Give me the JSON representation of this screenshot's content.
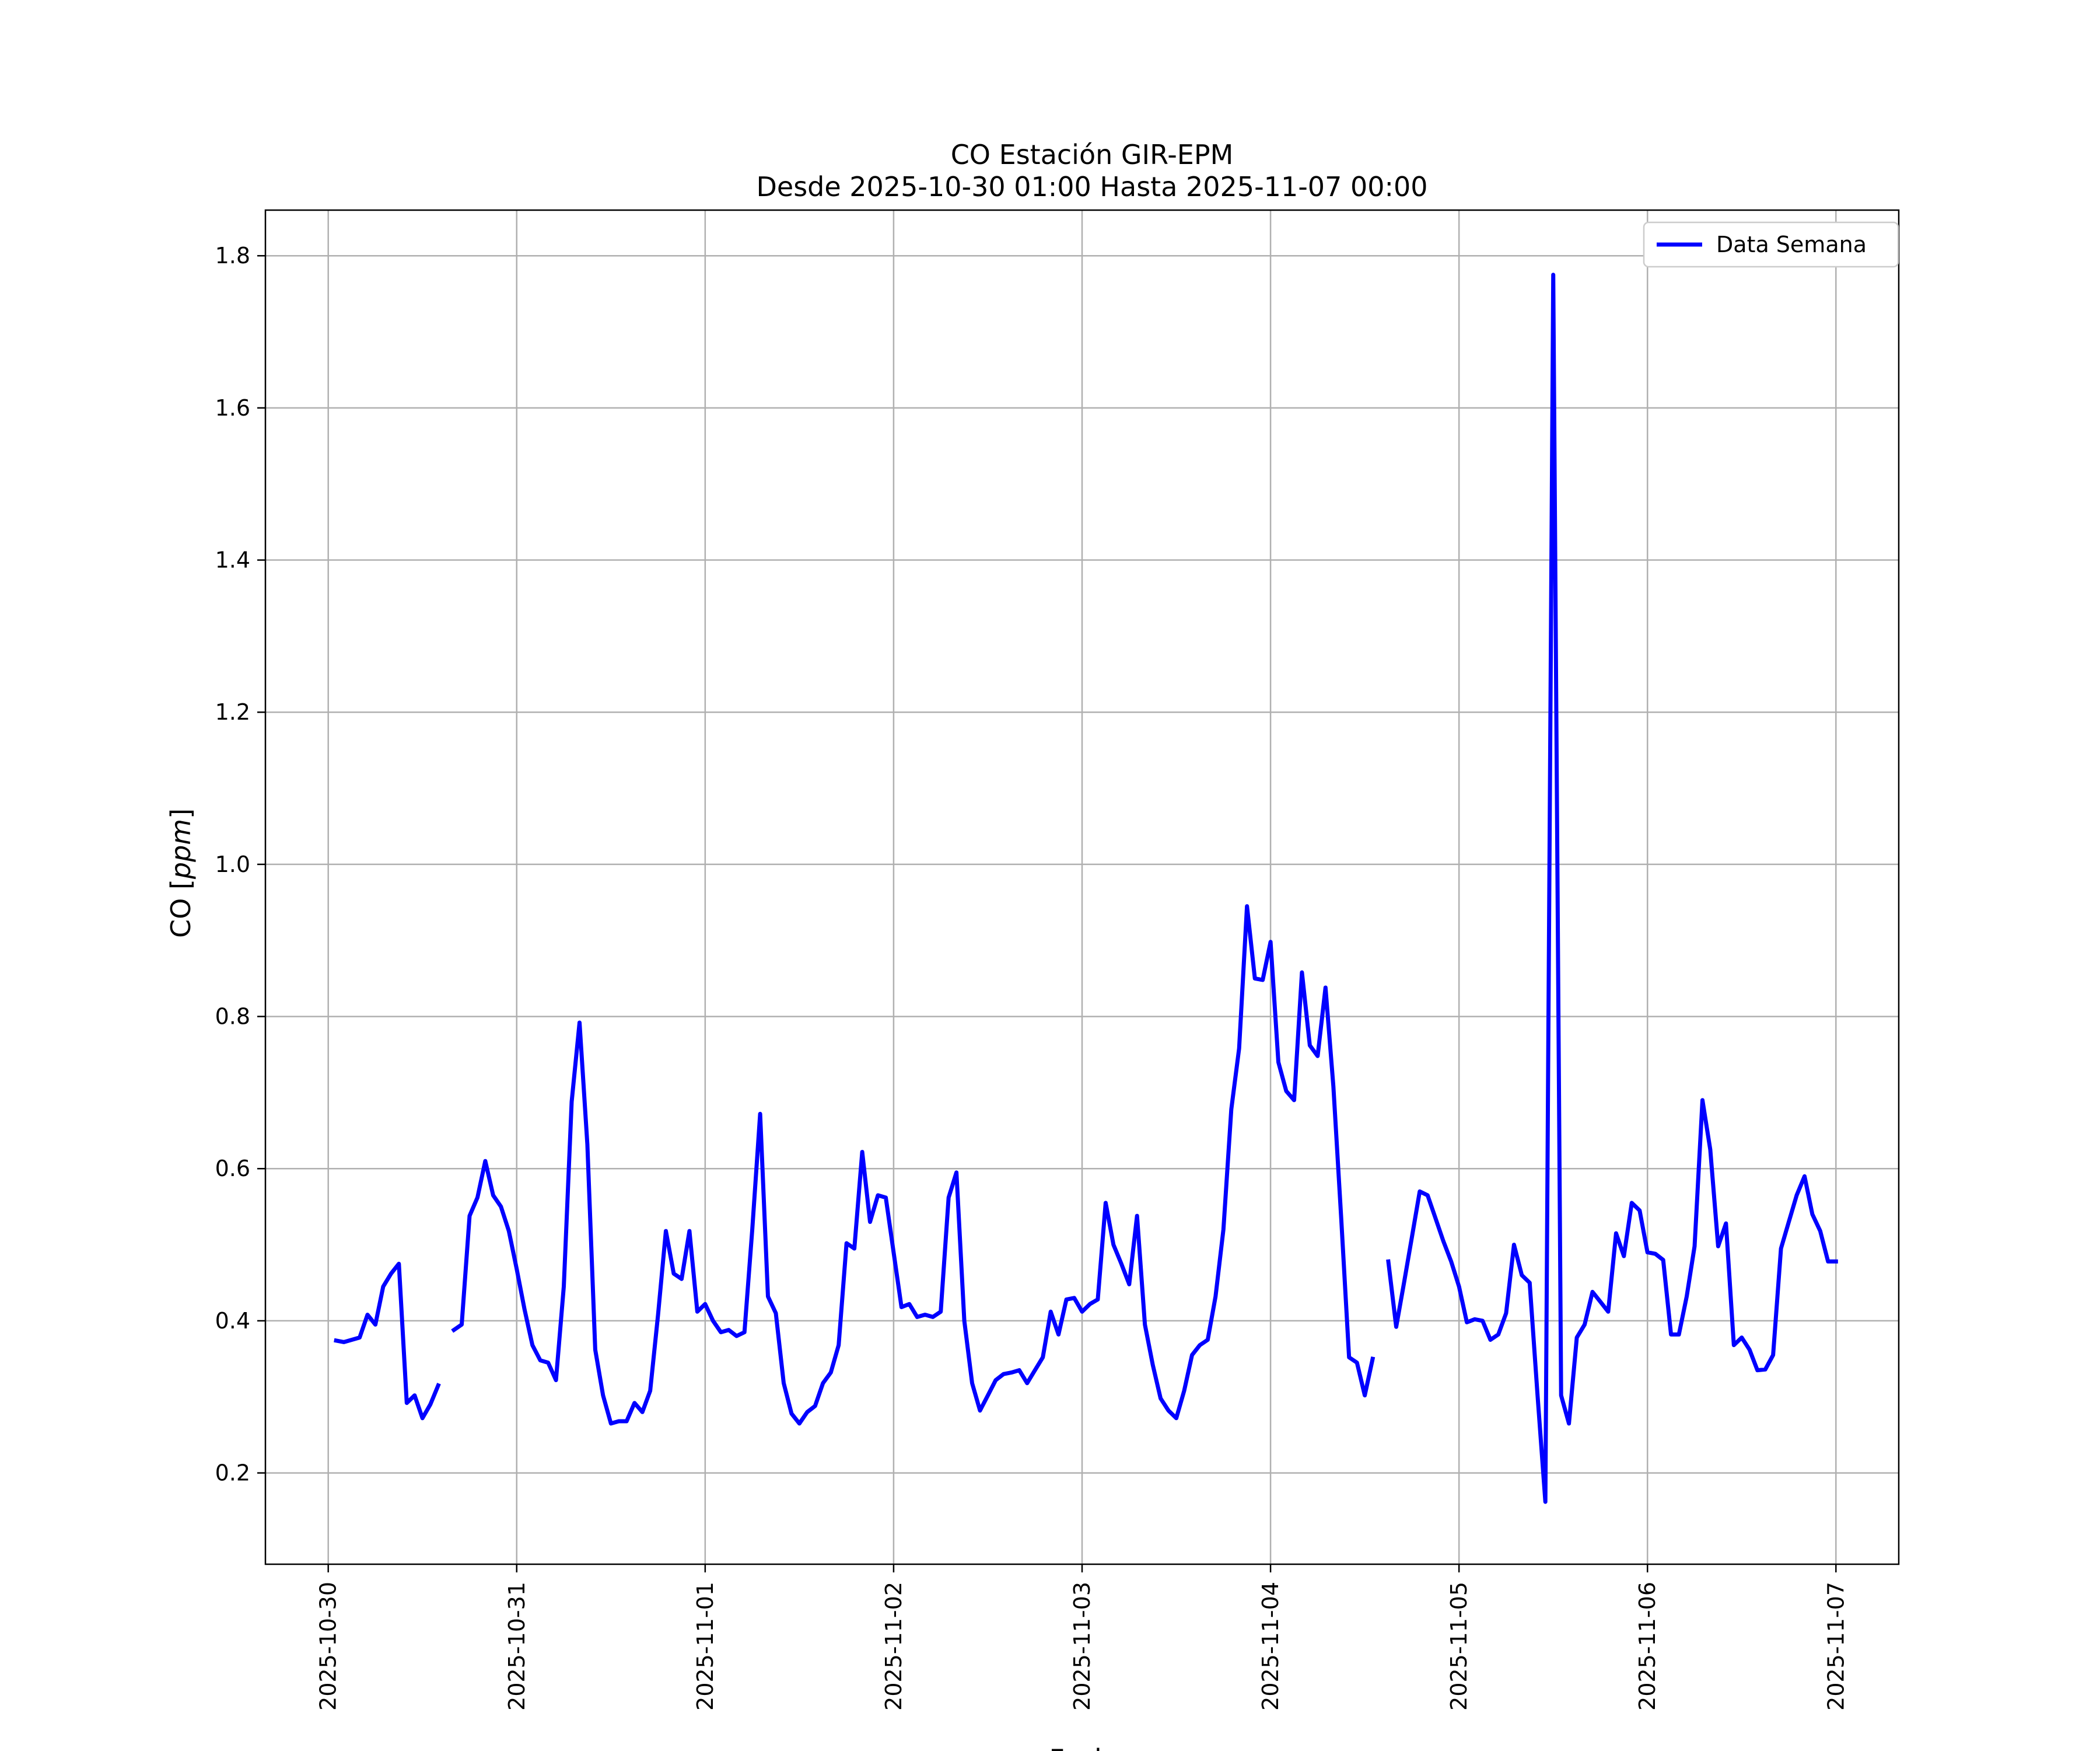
{
  "chart_data": {
    "type": "line",
    "title": "CO Estación GIR-EPM",
    "subtitle": "Desde 2025-10-30 01:00 Hasta 2025-11-07 00:00",
    "xlabel": "Fecha",
    "ylabel": "CO [ppm]",
    "ylabel_parts": {
      "prefix": "CO [",
      "unit": "ppm",
      "suffix": "]"
    },
    "x_ticks": [
      "2025-10-30",
      "2025-10-31",
      "2025-11-01",
      "2025-11-02",
      "2025-11-03",
      "2025-11-04",
      "2025-11-05",
      "2025-11-06",
      "2025-11-07"
    ],
    "y_ticks": [
      "0.2",
      "0.4",
      "0.6",
      "0.8",
      "1.0",
      "1.2",
      "1.4",
      "1.6",
      "1.8"
    ],
    "xlim": [
      "2025-10-29 16:00",
      "2025-11-07 08:00"
    ],
    "ylim": [
      0.08,
      1.86
    ],
    "grid": true,
    "legend_position": "top-right",
    "series": [
      {
        "name": "Data Semana",
        "color": "#0000ff",
        "points": [
          [
            "2025-10-30 01:00",
            0.374
          ],
          [
            "2025-10-30 02:00",
            0.372
          ],
          [
            "2025-10-30 03:00",
            0.375
          ],
          [
            "2025-10-30 04:00",
            0.378
          ],
          [
            "2025-10-30 05:00",
            0.408
          ],
          [
            "2025-10-30 06:00",
            0.395
          ],
          [
            "2025-10-30 07:00",
            0.445
          ],
          [
            "2025-10-30 08:00",
            0.462
          ],
          [
            "2025-10-30 09:00",
            0.475
          ],
          [
            "2025-10-30 10:00",
            0.292
          ],
          [
            "2025-10-30 11:00",
            0.302
          ],
          [
            "2025-10-30 12:00",
            0.272
          ],
          [
            "2025-10-30 13:00",
            0.29
          ],
          [
            "2025-10-30 14:00",
            0.315
          ],
          null,
          [
            "2025-10-30 16:00",
            0.388
          ],
          [
            "2025-10-30 17:00",
            0.395
          ],
          [
            "2025-10-30 18:00",
            0.538
          ],
          [
            "2025-10-30 19:00",
            0.562
          ],
          [
            "2025-10-30 20:00",
            0.61
          ],
          [
            "2025-10-30 21:00",
            0.565
          ],
          [
            "2025-10-30 22:00",
            0.55
          ],
          [
            "2025-10-30 23:00",
            0.518
          ],
          [
            "2025-10-31 00:00",
            0.468
          ],
          [
            "2025-10-31 01:00",
            0.415
          ],
          [
            "2025-10-31 02:00",
            0.368
          ],
          [
            "2025-10-31 03:00",
            0.348
          ],
          [
            "2025-10-31 04:00",
            0.345
          ],
          [
            "2025-10-31 05:00",
            0.322
          ],
          [
            "2025-10-31 06:00",
            0.445
          ],
          [
            "2025-10-31 07:00",
            0.688
          ],
          [
            "2025-10-31 08:00",
            0.792
          ],
          [
            "2025-10-31 09:00",
            0.632
          ],
          [
            "2025-10-31 10:00",
            0.362
          ],
          [
            "2025-10-31 11:00",
            0.302
          ],
          [
            "2025-10-31 12:00",
            0.265
          ],
          [
            "2025-10-31 13:00",
            0.268
          ],
          [
            "2025-10-31 14:00",
            0.268
          ],
          [
            "2025-10-31 15:00",
            0.292
          ],
          [
            "2025-10-31 16:00",
            0.28
          ],
          [
            "2025-10-31 17:00",
            0.308
          ],
          [
            "2025-10-31 18:00",
            0.408
          ],
          [
            "2025-10-31 19:00",
            0.518
          ],
          [
            "2025-10-31 20:00",
            0.462
          ],
          [
            "2025-10-31 21:00",
            0.455
          ],
          [
            "2025-10-31 22:00",
            0.518
          ],
          [
            "2025-10-31 23:00",
            0.412
          ],
          [
            "2025-11-01 00:00",
            0.422
          ],
          [
            "2025-11-01 01:00",
            0.4
          ],
          [
            "2025-11-01 02:00",
            0.385
          ],
          [
            "2025-11-01 03:00",
            0.388
          ],
          [
            "2025-11-01 04:00",
            0.38
          ],
          [
            "2025-11-01 05:00",
            0.385
          ],
          [
            "2025-11-01 06:00",
            0.52
          ],
          [
            "2025-11-01 07:00",
            0.672
          ],
          [
            "2025-11-01 08:00",
            0.432
          ],
          [
            "2025-11-01 09:00",
            0.41
          ],
          [
            "2025-11-01 10:00",
            0.318
          ],
          [
            "2025-11-01 11:00",
            0.278
          ],
          [
            "2025-11-01 12:00",
            0.265
          ],
          [
            "2025-11-01 13:00",
            0.28
          ],
          [
            "2025-11-01 14:00",
            0.288
          ],
          [
            "2025-11-01 15:00",
            0.318
          ],
          [
            "2025-11-01 16:00",
            0.332
          ],
          [
            "2025-11-01 17:00",
            0.368
          ],
          [
            "2025-11-01 18:00",
            0.502
          ],
          [
            "2025-11-01 19:00",
            0.495
          ],
          [
            "2025-11-01 20:00",
            0.622
          ],
          [
            "2025-11-01 21:00",
            0.53
          ],
          [
            "2025-11-01 22:00",
            0.565
          ],
          [
            "2025-11-01 23:00",
            0.562
          ],
          [
            "2025-11-02 00:00",
            0.49
          ],
          [
            "2025-11-02 01:00",
            0.418
          ],
          [
            "2025-11-02 02:00",
            0.422
          ],
          [
            "2025-11-02 03:00",
            0.405
          ],
          [
            "2025-11-02 04:00",
            0.408
          ],
          [
            "2025-11-02 05:00",
            0.405
          ],
          [
            "2025-11-02 06:00",
            0.412
          ],
          [
            "2025-11-02 07:00",
            0.562
          ],
          [
            "2025-11-02 08:00",
            0.595
          ],
          [
            "2025-11-02 09:00",
            0.4
          ],
          [
            "2025-11-02 10:00",
            0.318
          ],
          [
            "2025-11-02 11:00",
            0.282
          ],
          [
            "2025-11-02 12:00",
            0.302
          ],
          [
            "2025-11-02 13:00",
            0.322
          ],
          [
            "2025-11-02 14:00",
            0.33
          ],
          [
            "2025-11-02 15:00",
            0.332
          ],
          [
            "2025-11-02 16:00",
            0.335
          ],
          [
            "2025-11-02 17:00",
            0.318
          ],
          [
            "2025-11-02 18:00",
            0.335
          ],
          [
            "2025-11-02 19:00",
            0.352
          ],
          [
            "2025-11-02 20:00",
            0.412
          ],
          [
            "2025-11-02 21:00",
            0.382
          ],
          [
            "2025-11-02 22:00",
            0.428
          ],
          [
            "2025-11-02 23:00",
            0.43
          ],
          [
            "2025-11-03 00:00",
            0.412
          ],
          [
            "2025-11-03 01:00",
            0.422
          ],
          [
            "2025-11-03 02:00",
            0.428
          ],
          [
            "2025-11-03 03:00",
            0.555
          ],
          [
            "2025-11-03 04:00",
            0.5
          ],
          [
            "2025-11-03 05:00",
            0.475
          ],
          [
            "2025-11-03 06:00",
            0.448
          ],
          [
            "2025-11-03 07:00",
            0.538
          ],
          [
            "2025-11-03 08:00",
            0.395
          ],
          [
            "2025-11-03 09:00",
            0.342
          ],
          [
            "2025-11-03 10:00",
            0.298
          ],
          [
            "2025-11-03 11:00",
            0.282
          ],
          [
            "2025-11-03 12:00",
            0.272
          ],
          [
            "2025-11-03 13:00",
            0.308
          ],
          [
            "2025-11-03 14:00",
            0.355
          ],
          [
            "2025-11-03 15:00",
            0.368
          ],
          [
            "2025-11-03 16:00",
            0.375
          ],
          [
            "2025-11-03 17:00",
            0.432
          ],
          [
            "2025-11-03 18:00",
            0.52
          ],
          [
            "2025-11-03 19:00",
            0.678
          ],
          [
            "2025-11-03 20:00",
            0.758
          ],
          [
            "2025-11-03 21:00",
            0.945
          ],
          [
            "2025-11-03 22:00",
            0.85
          ],
          [
            "2025-11-03 23:00",
            0.848
          ],
          [
            "2025-11-04 00:00",
            0.898
          ],
          [
            "2025-11-04 01:00",
            0.74
          ],
          [
            "2025-11-04 02:00",
            0.702
          ],
          [
            "2025-11-04 03:00",
            0.69
          ],
          [
            "2025-11-04 04:00",
            0.858
          ],
          [
            "2025-11-04 05:00",
            0.762
          ],
          [
            "2025-11-04 06:00",
            0.748
          ],
          [
            "2025-11-04 07:00",
            0.838
          ],
          [
            "2025-11-04 08:00",
            0.708
          ],
          [
            "2025-11-04 09:00",
            0.535
          ],
          [
            "2025-11-04 10:00",
            0.352
          ],
          [
            "2025-11-04 11:00",
            0.345
          ],
          [
            "2025-11-04 12:00",
            0.302
          ],
          [
            "2025-11-04 13:00",
            0.35
          ],
          null,
          [
            "2025-11-04 15:00",
            0.478
          ],
          [
            "2025-11-04 16:00",
            0.392
          ],
          [
            "2025-11-04 17:00",
            0.45
          ],
          [
            "2025-11-04 18:00",
            0.51
          ],
          [
            "2025-11-04 19:00",
            0.57
          ],
          [
            "2025-11-04 20:00",
            0.565
          ],
          [
            "2025-11-04 21:00",
            0.535
          ],
          [
            "2025-11-04 22:00",
            0.505
          ],
          [
            "2025-11-04 23:00",
            0.478
          ],
          [
            "2025-11-05 00:00",
            0.445
          ],
          [
            "2025-11-05 01:00",
            0.398
          ],
          [
            "2025-11-05 02:00",
            0.402
          ],
          [
            "2025-11-05 03:00",
            0.4
          ],
          [
            "2025-11-05 04:00",
            0.375
          ],
          [
            "2025-11-05 05:00",
            0.382
          ],
          [
            "2025-11-05 06:00",
            0.41
          ],
          [
            "2025-11-05 07:00",
            0.5
          ],
          [
            "2025-11-05 08:00",
            0.46
          ],
          [
            "2025-11-05 09:00",
            0.45
          ],
          [
            "2025-11-05 10:00",
            0.302
          ],
          [
            "2025-11-05 11:00",
            0.162
          ],
          [
            "2025-11-05 12:00",
            1.775
          ],
          [
            "2025-11-05 13:00",
            0.302
          ],
          [
            "2025-11-05 14:00",
            0.265
          ],
          [
            "2025-11-05 15:00",
            0.378
          ],
          [
            "2025-11-05 16:00",
            0.395
          ],
          [
            "2025-11-05 17:00",
            0.438
          ],
          [
            "2025-11-05 18:00",
            0.425
          ],
          [
            "2025-11-05 19:00",
            0.412
          ],
          [
            "2025-11-05 20:00",
            0.515
          ],
          [
            "2025-11-05 21:00",
            0.485
          ],
          [
            "2025-11-05 22:00",
            0.555
          ],
          [
            "2025-11-05 23:00",
            0.545
          ],
          [
            "2025-11-06 00:00",
            0.49
          ],
          [
            "2025-11-06 01:00",
            0.488
          ],
          [
            "2025-11-06 02:00",
            0.48
          ],
          [
            "2025-11-06 03:00",
            0.382
          ],
          [
            "2025-11-06 04:00",
            0.382
          ],
          [
            "2025-11-06 05:00",
            0.432
          ],
          [
            "2025-11-06 06:00",
            0.498
          ],
          [
            "2025-11-06 07:00",
            0.69
          ],
          [
            "2025-11-06 08:00",
            0.625
          ],
          [
            "2025-11-06 09:00",
            0.498
          ],
          [
            "2025-11-06 10:00",
            0.528
          ],
          [
            "2025-11-06 11:00",
            0.368
          ],
          [
            "2025-11-06 12:00",
            0.378
          ],
          [
            "2025-11-06 13:00",
            0.362
          ],
          [
            "2025-11-06 14:00",
            0.335
          ],
          [
            "2025-11-06 15:00",
            0.336
          ],
          [
            "2025-11-06 16:00",
            0.355
          ],
          [
            "2025-11-06 17:00",
            0.495
          ],
          [
            "2025-11-06 18:00",
            0.53
          ],
          [
            "2025-11-06 19:00",
            0.565
          ],
          [
            "2025-11-06 20:00",
            0.59
          ],
          [
            "2025-11-06 21:00",
            0.54
          ],
          [
            "2025-11-06 22:00",
            0.518
          ],
          [
            "2025-11-06 23:00",
            0.478
          ],
          [
            "2025-11-07 00:00",
            0.478
          ]
        ]
      }
    ]
  }
}
